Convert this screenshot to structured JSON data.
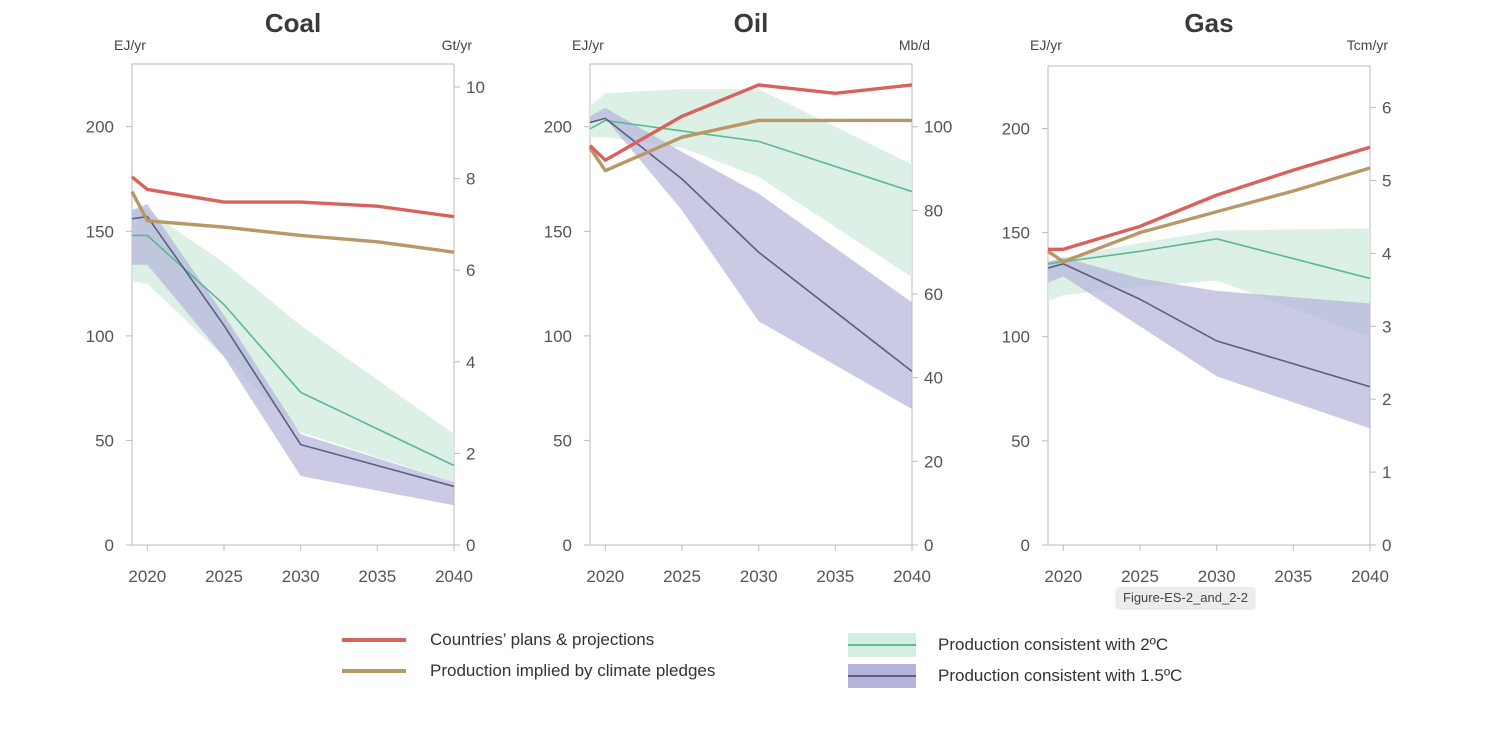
{
  "colors": {
    "plans": "#d9625c",
    "pledges": "#b89866",
    "two_c_line": "#5bb896",
    "two_c_band": "#d6ede2",
    "one_five_line": "#5c5f82",
    "one_five_band": "#b5b5db",
    "axis": "#bbbbbb"
  },
  "legend": {
    "items": [
      {
        "key": "plans",
        "label": "Countries’ plans & projections",
        "kind": "line"
      },
      {
        "key": "pledges",
        "label": "Production implied by climate pledges",
        "kind": "line"
      },
      {
        "key": "two_c",
        "label": "Production consistent with 2ºC",
        "kind": "band"
      },
      {
        "key": "one_five",
        "label": "Production consistent with 1.5ºC",
        "kind": "band"
      }
    ]
  },
  "tooltip": {
    "text": "Figure-ES-2_and_2-2"
  },
  "chart_data": [
    {
      "type": "line",
      "title": "Coal",
      "left_unit": "EJ/yr",
      "right_unit": "Gt/yr",
      "xlim": [
        2019,
        2040
      ],
      "ylim": [
        0,
        230
      ],
      "x_ticks": [
        2020,
        2025,
        2030,
        2035,
        2040
      ],
      "y_ticks": [
        0,
        50,
        100,
        150,
        200
      ],
      "right_ticks": [
        0,
        2,
        4,
        6,
        8,
        10
      ],
      "right_per_left": 0.04566,
      "series": [
        {
          "key": "plans",
          "name": "Countries’ plans & projections",
          "x": [
            2019,
            2020,
            2025,
            2030,
            2035,
            2040
          ],
          "y": [
            176,
            170,
            164,
            164,
            162,
            157
          ]
        },
        {
          "key": "pledges",
          "name": "Production implied by climate pledges",
          "x": [
            2019,
            2020,
            2025,
            2030,
            2035,
            2040
          ],
          "y": [
            169,
            155,
            152,
            148,
            145,
            140
          ]
        }
      ],
      "bands": [
        {
          "key": "two_c",
          "name": "Production consistent with 2ºC",
          "x": [
            2019,
            2020,
            2025,
            2030,
            2040
          ],
          "lower": [
            126,
            125,
            90,
            54,
            30
          ],
          "upper": [
            161,
            160,
            135,
            105,
            53
          ],
          "median": [
            148,
            148,
            115,
            73,
            38
          ]
        },
        {
          "key": "one_five",
          "name": "Production consistent with 1.5ºC",
          "x": [
            2019,
            2020,
            2025,
            2030,
            2040
          ],
          "lower": [
            134,
            134,
            90,
            33,
            19
          ],
          "upper": [
            160,
            163,
            110,
            53,
            30
          ],
          "median": [
            156,
            157,
            105,
            48,
            28
          ]
        }
      ]
    },
    {
      "type": "line",
      "title": "Oil",
      "left_unit": "EJ/yr",
      "right_unit": "Mb/d",
      "xlim": [
        2019,
        2040
      ],
      "ylim": [
        0,
        230
      ],
      "x_ticks": [
        2020,
        2025,
        2030,
        2035,
        2040
      ],
      "y_ticks": [
        0,
        50,
        100,
        150,
        200
      ],
      "right_ticks": [
        0,
        20,
        40,
        60,
        80,
        100
      ],
      "right_per_left": 0.5,
      "series": [
        {
          "key": "plans",
          "name": "Countries’ plans & projections",
          "x": [
            2019,
            2020,
            2025,
            2030,
            2035,
            2040
          ],
          "y": [
            191,
            184,
            205,
            220,
            216,
            220
          ]
        },
        {
          "key": "pledges",
          "name": "Production implied by climate pledges",
          "x": [
            2019,
            2020,
            2025,
            2030,
            2035,
            2040
          ],
          "y": [
            190,
            179,
            195,
            203,
            203,
            203
          ]
        }
      ],
      "bands": [
        {
          "key": "two_c",
          "name": "Production consistent with 2ºC",
          "x": [
            2019,
            2020,
            2025,
            2030,
            2040
          ],
          "lower": [
            195,
            195,
            190,
            176,
            128
          ],
          "upper": [
            210,
            216,
            218,
            218,
            182
          ],
          "median": [
            199,
            203,
            198,
            193,
            169
          ]
        },
        {
          "key": "one_five",
          "name": "Production consistent with 1.5ºC",
          "x": [
            2019,
            2020,
            2025,
            2030,
            2040
          ],
          "lower": [
            202,
            204,
            160,
            107,
            65
          ],
          "upper": [
            205,
            209,
            188,
            168,
            116
          ],
          "median": [
            202,
            204,
            175,
            140,
            83
          ]
        }
      ]
    },
    {
      "type": "line",
      "title": "Gas",
      "left_unit": "EJ/yr",
      "right_unit": "Tcm/yr",
      "xlim": [
        2019,
        2040
      ],
      "ylim": [
        0,
        230
      ],
      "x_ticks": [
        2020,
        2025,
        2030,
        2035,
        2040
      ],
      "y_ticks": [
        0,
        50,
        100,
        150,
        200
      ],
      "right_ticks": [
        0,
        1,
        2,
        3,
        4,
        5,
        6
      ],
      "right_per_left": 0.02857,
      "series": [
        {
          "key": "plans",
          "name": "Countries’ plans & projections",
          "x": [
            2019,
            2020,
            2025,
            2030,
            2035,
            2040
          ],
          "y": [
            142,
            142,
            153,
            168,
            180,
            191
          ]
        },
        {
          "key": "pledges",
          "name": "Production implied by climate pledges",
          "x": [
            2019,
            2020,
            2025,
            2030,
            2035,
            2040
          ],
          "y": [
            141,
            136,
            150,
            160,
            170,
            181
          ]
        }
      ],
      "bands": [
        {
          "key": "two_c",
          "name": "Production consistent with 2ºC",
          "x": [
            2019,
            2020,
            2025,
            2030,
            2040
          ],
          "lower": [
            117,
            120,
            124,
            127,
            100
          ],
          "upper": [
            136,
            138,
            145,
            151,
            152
          ],
          "median": [
            135,
            136,
            141,
            147,
            128
          ]
        },
        {
          "key": "one_five",
          "name": "Production consistent with 1.5ºC",
          "x": [
            2019,
            2020,
            2025,
            2030,
            2040
          ],
          "lower": [
            126,
            129,
            105,
            81,
            56
          ],
          "upper": [
            136,
            138,
            128,
            122,
            116
          ],
          "median": [
            133,
            135,
            118,
            98,
            76
          ]
        }
      ]
    }
  ]
}
